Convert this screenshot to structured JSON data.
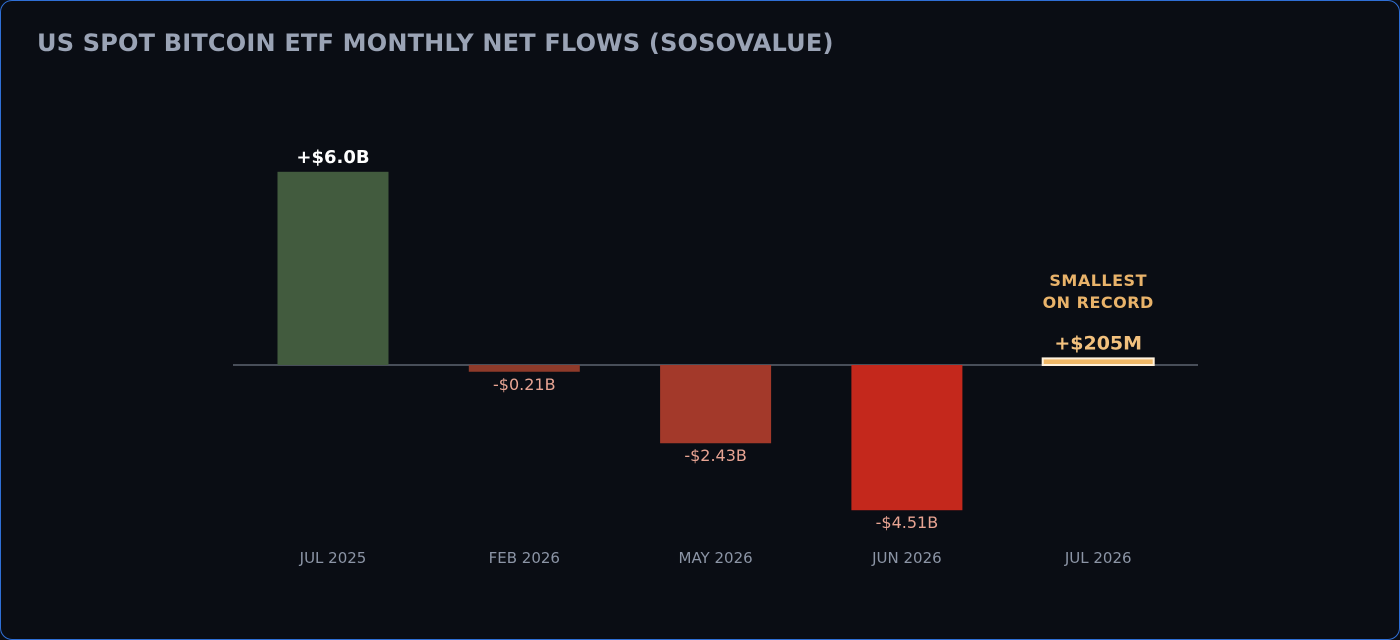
{
  "chart_data": {
    "type": "bar",
    "title": "US SPOT BITCOIN ETF MONTHLY NET FLOWS (SOSOVALUE)",
    "unit": "$B",
    "categories": [
      "JUL 2025",
      "FEB 2026",
      "MAY 2026",
      "JUN 2026",
      "JUL 2026"
    ],
    "values": [
      6.0,
      -0.21,
      -2.43,
      -4.51,
      0.205
    ],
    "data_labels": [
      "+$6.0B",
      "-$0.21B",
      "-$2.43B",
      "-$4.51B",
      "+$205M"
    ],
    "bar_colors": [
      "#425b3e",
      "#8e3a2a",
      "#a3392a",
      "#c4281c",
      "#f6c989"
    ],
    "label_colors": [
      "#ffffff",
      "#e8a493",
      "#e8a493",
      "#e8a493",
      "#f2c17e"
    ],
    "annotation": {
      "category": "JUL 2026",
      "lines": [
        "SMALLEST",
        "ON RECORD"
      ],
      "color": "#e9b36a"
    },
    "ylim": [
      -4.51,
      6.0
    ],
    "grid": false,
    "legend": "none",
    "xlabel": "",
    "ylabel": ""
  },
  "colors": {
    "background": "#0a0d14",
    "border": "#2f6fd6",
    "title": "#9aa3b5",
    "zero_line": "#5d6470",
    "category_label": "#8c95a6"
  }
}
